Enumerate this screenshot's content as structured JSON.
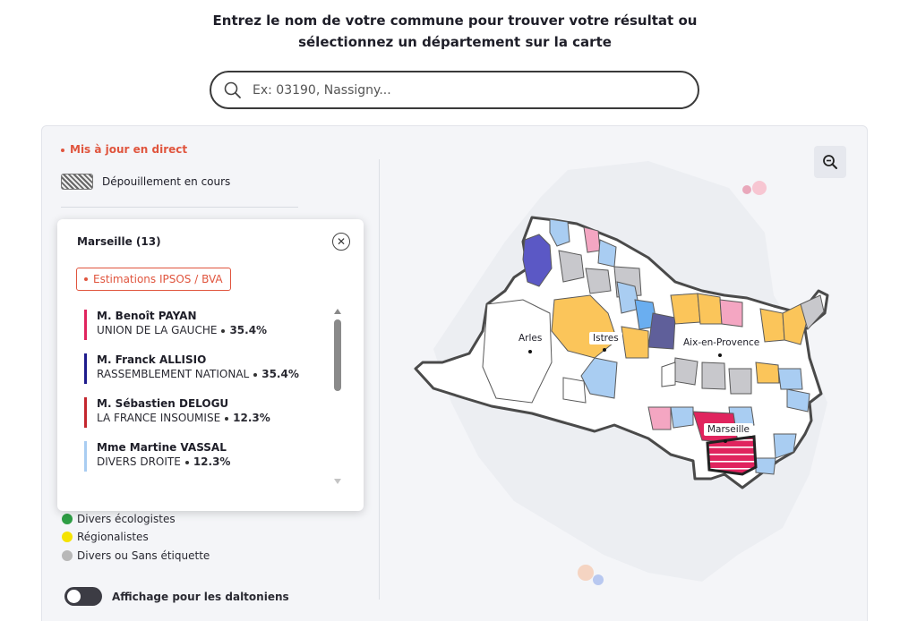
{
  "header": {
    "line1": "Entrez le nom de votre commune pour trouver votre résultat ou",
    "line2": "sélectionnez un département sur la carte"
  },
  "search": {
    "placeholder": "Ex: 03190, Nassigny...",
    "icon": "search-icon"
  },
  "status": {
    "live": "Mis à jour en direct",
    "counting": "Dépouillement en cours"
  },
  "popup": {
    "title": "Marseille (13)",
    "badge": "Estimations IPSOS / BVA",
    "candidates": [
      {
        "name": "M. Benoît PAYAN",
        "party": "UNION DE LA GAUCHE",
        "pct": "35.4%",
        "color": "#e0245e"
      },
      {
        "name": "M. Franck ALLISIO",
        "party": "RASSEMBLEMENT NATIONAL",
        "pct": "35.4%",
        "color": "#1e1b8c"
      },
      {
        "name": "M. Sébastien DELOGU",
        "party": "LA FRANCE INSOUMISE",
        "pct": "12.3%",
        "color": "#c4262e"
      },
      {
        "name": "Mme Martine VASSAL",
        "party": "DIVERS DROITE",
        "pct": "12.3%",
        "color": "#a9cdf2"
      }
    ]
  },
  "legend": [
    {
      "label": "Divers écologistes",
      "color": "#2e9e45"
    },
    {
      "label": "Régionalistes",
      "color": "#f5e300"
    },
    {
      "label": "Divers ou Sans étiquette",
      "color": "#b8b8b8"
    }
  ],
  "toggle": {
    "label": "Affichage pour les daltoniens",
    "on": false
  },
  "map": {
    "cities": [
      {
        "name": "Arles"
      },
      {
        "name": "Istres"
      },
      {
        "name": "Aix-en-Provence"
      },
      {
        "name": "Marseille"
      }
    ]
  }
}
